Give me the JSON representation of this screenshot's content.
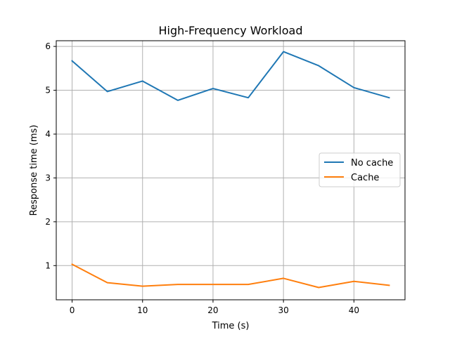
{
  "chart_data": {
    "type": "line",
    "title": "High-Frequency Workload",
    "xlabel": "Time (s)",
    "ylabel": "Response time (ms)",
    "x": [
      0,
      5,
      10,
      15,
      20,
      25,
      30,
      35,
      40,
      45
    ],
    "xlim": [
      -2.25,
      47.25
    ],
    "ylim": [
      0.22,
      6.13
    ],
    "xticks": [
      0,
      10,
      20,
      30,
      40
    ],
    "yticks": [
      1,
      2,
      3,
      4,
      5,
      6
    ],
    "grid": true,
    "legend_position": "center-right",
    "series": [
      {
        "name": "No cache",
        "color": "#1f77b4",
        "values": [
          5.67,
          4.97,
          5.21,
          4.77,
          5.04,
          4.83,
          5.88,
          5.56,
          5.06,
          4.83
        ]
      },
      {
        "name": "Cache",
        "color": "#ff7f0e",
        "values": [
          1.03,
          0.61,
          0.53,
          0.57,
          0.57,
          0.57,
          0.71,
          0.5,
          0.64,
          0.55
        ]
      }
    ]
  }
}
